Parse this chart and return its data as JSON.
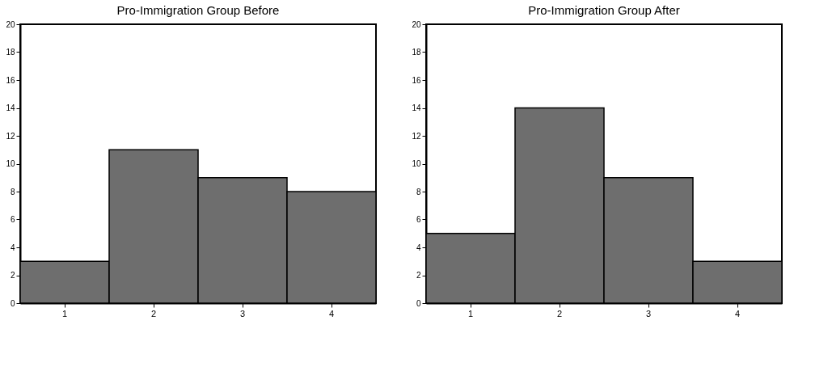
{
  "chart_data": [
    {
      "type": "bar",
      "title": "Pro-Immigration Group Before",
      "categories": [
        "1",
        "2",
        "3",
        "4"
      ],
      "values": [
        3,
        11,
        9,
        8
      ],
      "color": "#6e6e6e",
      "ylim": [
        0,
        20
      ],
      "yticks": [
        0,
        2,
        4,
        6,
        8,
        10,
        12,
        14,
        16,
        18,
        20
      ],
      "grid": false
    },
    {
      "type": "bar",
      "title": "Pro-Immigration Group After",
      "categories": [
        "1",
        "2",
        "3",
        "4"
      ],
      "values": [
        5,
        14,
        9,
        3
      ],
      "color": "#6e6e6e",
      "ylim": [
        0,
        20
      ],
      "yticks": [
        0,
        2,
        4,
        6,
        8,
        10,
        12,
        14,
        16,
        18,
        20
      ],
      "grid": false
    }
  ]
}
